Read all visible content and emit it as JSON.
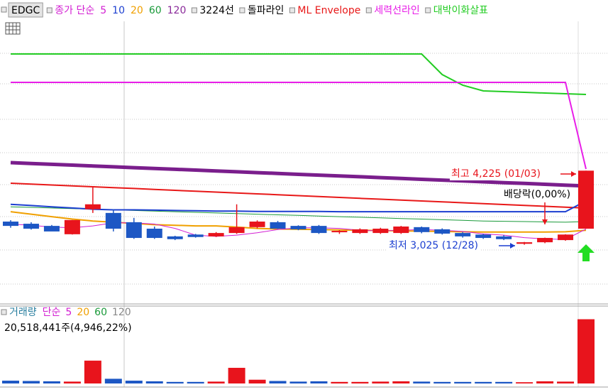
{
  "chart_data": [
    {
      "type": "candlestick",
      "ticker": "EDGC",
      "legend": [
        {
          "label": "종가 단순",
          "color": "#d21ed2"
        },
        {
          "label": "5",
          "color": "#d21ed2"
        },
        {
          "label": "10",
          "color": "#1c3fd0"
        },
        {
          "label": "20",
          "color": "#f0a000"
        },
        {
          "label": "60",
          "color": "#1a9a3a"
        },
        {
          "label": "120",
          "color": "#8a2a9a"
        },
        {
          "label": "3224선",
          "color": "#000000"
        },
        {
          "label": "돌파라인",
          "color": "#000000"
        },
        {
          "label": "ML Envelope",
          "color": "#e81818"
        },
        {
          "label": "세력선라인",
          "color": "#e81ee8"
        },
        {
          "label": "대박이화살표",
          "color": "#22cc22"
        }
      ],
      "up_color": "#e8141c",
      "down_color": "#1d57c4",
      "ylim": [
        2100,
        6300
      ],
      "open": [
        3400,
        3365,
        3330,
        3195,
        3600,
        3540,
        3390,
        3285,
        3160,
        3190,
        3160,
        3215,
        3310,
        3390,
        3330,
        3330,
        3230,
        3215,
        3215,
        3215,
        3310,
        3275,
        3215,
        3190,
        3160,
        3040,
        3065,
        3100,
        3285
      ],
      "high": [
        3423,
        3390,
        3345,
        3425,
        3975,
        3600,
        3460,
        3320,
        3170,
        3200,
        3230,
        3680,
        3420,
        3410,
        3340,
        3345,
        3260,
        3290,
        3300,
        3330,
        3320,
        3290,
        3230,
        3200,
        3180,
        3070,
        3140,
        3195,
        4225
      ],
      "low": [
        3300,
        3270,
        3250,
        3190,
        3540,
        3240,
        3120,
        3120,
        3100,
        3140,
        3150,
        3200,
        3290,
        3280,
        3260,
        3200,
        3200,
        3200,
        3200,
        3200,
        3210,
        3190,
        3140,
        3120,
        3100,
        3025,
        3050,
        3090,
        3285
      ],
      "close": [
        3330,
        3285,
        3240,
        3425,
        3680,
        3285,
        3135,
        3135,
        3115,
        3150,
        3215,
        3310,
        3400,
        3285,
        3275,
        3215,
        3250,
        3275,
        3285,
        3320,
        3230,
        3205,
        3160,
        3135,
        3115,
        3065,
        3135,
        3190,
        4225
      ],
      "series": [
        {
          "color": "#22cc22",
          "line_width": 2,
          "values": [
            6116,
            6116,
            6116,
            6116,
            6116,
            6116,
            6116,
            6116,
            6116,
            6116,
            6116,
            6116,
            6116,
            6116,
            6116,
            6116,
            6116,
            6116,
            6116,
            6116,
            6116,
            5782,
            5610,
            5518,
            5506,
            5495,
            5483,
            5472,
            5460
          ]
        },
        {
          "color": "#e81ee8",
          "line_width": 2,
          "values": [
            5656,
            5656,
            5656,
            5656,
            5656,
            5656,
            5656,
            5656,
            5656,
            5656,
            5656,
            5656,
            5656,
            5656,
            5656,
            5656,
            5656,
            5656,
            5656,
            5656,
            5656,
            5656,
            5656,
            5656,
            5656,
            5656,
            5656,
            5656,
            4252
          ]
        },
        {
          "color": "#e81818",
          "line_width": 2,
          "values": [
            4022,
            4008,
            3993,
            3979,
            3964,
            3950,
            3936,
            3921,
            3907,
            3892,
            3878,
            3864,
            3849,
            3835,
            3820,
            3806,
            3792,
            3777,
            3763,
            3748,
            3734,
            3720,
            3705,
            3691,
            3676,
            3662,
            3648,
            3633,
            3619
          ]
        },
        {
          "color": "#1a9a3a",
          "line_width": 1,
          "values": [
            3640,
            3630,
            3620,
            3610,
            3600,
            3590,
            3580,
            3570,
            3560,
            3550,
            3540,
            3530,
            3520,
            3510,
            3500,
            3490,
            3480,
            3470,
            3460,
            3450,
            3440,
            3430,
            3420,
            3410,
            3405,
            3400,
            3395,
            3390,
            3400
          ]
        },
        {
          "color": "#f0a000",
          "line_width": 2,
          "values": [
            3560,
            3520,
            3480,
            3440,
            3410,
            3390,
            3370,
            3350,
            3340,
            3330,
            3330,
            3310,
            3290,
            3280,
            3275,
            3270,
            3265,
            3260,
            3255,
            3250,
            3245,
            3240,
            3235,
            3230,
            3230,
            3230,
            3230,
            3235,
            3260
          ]
        },
        {
          "color": "#1c3fd0",
          "line_width": 2,
          "values": [
            3680,
            3660,
            3640,
            3620,
            3600,
            3590,
            3590,
            3585,
            3580,
            3575,
            3570,
            3570,
            3565,
            3565,
            3565,
            3565,
            3560,
            3560,
            3560,
            3560,
            3560,
            3560,
            3560,
            3560,
            3560,
            3560,
            3560,
            3560,
            3735
          ]
        },
        {
          "color": "#d21ed2",
          "line_width": 1,
          "values": [
            3360,
            3340,
            3310,
            3300,
            3330,
            3380,
            3380,
            3360,
            3290,
            3180,
            3160,
            3180,
            3220,
            3270,
            3300,
            3300,
            3290,
            3260,
            3250,
            3260,
            3270,
            3260,
            3240,
            3200,
            3180,
            3140,
            3120,
            3110,
            3280
          ]
        },
        {
          "color": "#7a1e8c",
          "line_width": 5,
          "values": [
            4355,
            4342,
            4328,
            4315,
            4301,
            4288,
            4274,
            4261,
            4247,
            4234,
            4220,
            4207,
            4193,
            4180,
            4166,
            4153,
            4139,
            4126,
            4112,
            4099,
            4085,
            4072,
            4058,
            4045,
            4031,
            4018,
            4004,
            3991,
            3977
          ]
        }
      ],
      "annotations": [
        {
          "text": "최고 4,225 (01/03)",
          "color": "#e8141c"
        },
        {
          "text": "최저 3,025 (12/28)",
          "color": "#1c3fd0"
        },
        {
          "text": "배당락(0,00%)",
          "color": "#000000"
        }
      ]
    },
    {
      "type": "bar",
      "title": "거래량",
      "title_color": "#2a7fa0",
      "legend": [
        {
          "label": "단순",
          "color": "#d21ed2"
        },
        {
          "label": "5",
          "color": "#d21ed2"
        },
        {
          "label": "20",
          "color": "#f0a000"
        },
        {
          "label": "60",
          "color": "#1a9a3a"
        },
        {
          "label": "120",
          "color": "#888888"
        }
      ],
      "info": "20,518,441주(4,946,22%)",
      "ylim": [
        0,
        22000000
      ],
      "values": [
        900000,
        800000,
        700000,
        600000,
        7300000,
        1500000,
        900000,
        700000,
        500000,
        500000,
        600000,
        5000000,
        1200000,
        800000,
        600000,
        700000,
        500000,
        500000,
        600000,
        700000,
        600000,
        500000,
        500000,
        500000,
        500000,
        400000,
        700000,
        600000,
        20518441
      ]
    }
  ]
}
